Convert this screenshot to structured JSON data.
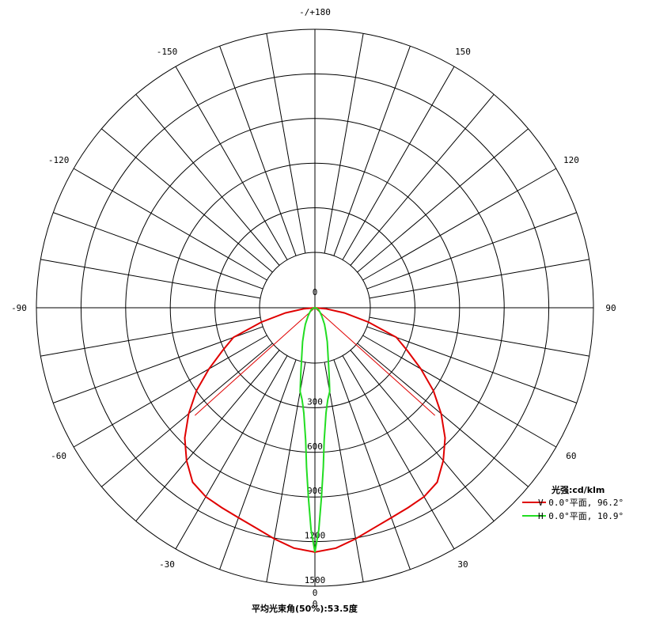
{
  "chart_data": {
    "type": "polar",
    "angle_unit": "degrees",
    "radial_unit": "cd/klm",
    "rmax": 1500,
    "radial_ticks": [
      0,
      300,
      600,
      900,
      1200,
      1500
    ],
    "angle_labels": [
      {
        "angle": 180,
        "text": "-/+180"
      },
      {
        "angle": 150,
        "text": "150"
      },
      {
        "angle": 120,
        "text": "120"
      },
      {
        "angle": 90,
        "text": "90"
      },
      {
        "angle": 60,
        "text": "60"
      },
      {
        "angle": 30,
        "text": "30"
      },
      {
        "angle": 0,
        "text": "0"
      },
      {
        "angle": -30,
        "text": "-30"
      },
      {
        "angle": -60,
        "text": "-60"
      },
      {
        "angle": -90,
        "text": "-90"
      },
      {
        "angle": -120,
        "text": "-120"
      },
      {
        "angle": -150,
        "text": "-150"
      }
    ],
    "radial_grid_angle_step": 10,
    "legend_title": "光强:cd/klm",
    "series": [
      {
        "name": "V 0.0°平面, 96.2°",
        "color": "#e00000",
        "beam_angle": 96.2,
        "angles": [
          0,
          5,
          10,
          15,
          20,
          25,
          30,
          35,
          40,
          45,
          50,
          55,
          60,
          65,
          70,
          75,
          80,
          85,
          90
        ],
        "values": [
          1270,
          1250,
          1205,
          1160,
          1130,
          1110,
          1095,
          1060,
          970,
          865,
          735,
          600,
          450,
          315,
          210,
          130,
          70,
          25,
          0
        ]
      },
      {
        "name": "H 0.0°平面, 10.9°",
        "color": "#22dd22",
        "beam_angle": 10.9,
        "angles": [
          0,
          1,
          2,
          3,
          4,
          5,
          6,
          7,
          8,
          10,
          12,
          15,
          20,
          25,
          30,
          40,
          50,
          60,
          70,
          80,
          90
        ],
        "values": [
          1270,
          1120,
          900,
          700,
          520,
          420,
          340,
          290,
          250,
          200,
          160,
          120,
          85,
          60,
          45,
          25,
          15,
          10,
          5,
          2,
          0
        ]
      }
    ],
    "beam_half_angle_lines": [
      {
        "angle": 48.1,
        "color": "#e00000"
      },
      {
        "angle": -48.1,
        "color": "#e00000"
      }
    ],
    "footer": "平均光束角(50%):53.5度"
  }
}
